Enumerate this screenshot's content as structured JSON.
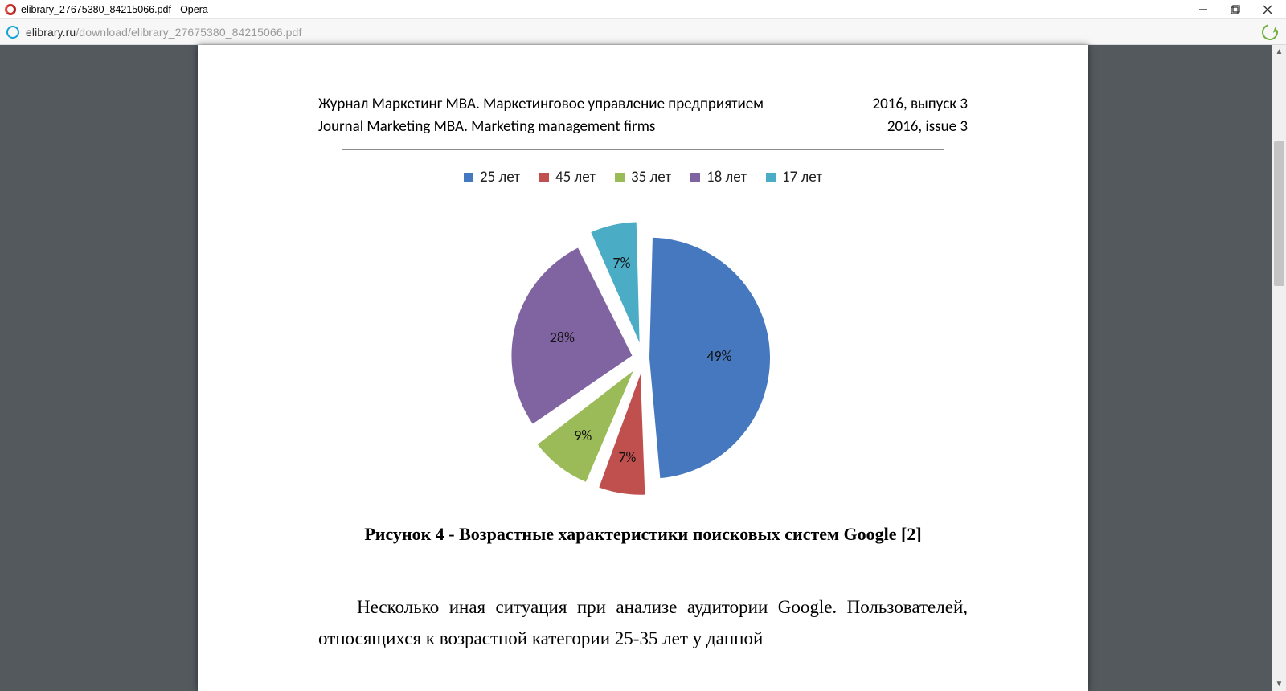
{
  "window": {
    "title": "elibrary_27675380_84215066.pdf - Opera",
    "controls": {
      "minimize": "—",
      "maximize": "❐",
      "close": "✕"
    }
  },
  "addressbar": {
    "host": "elibrary.ru",
    "path": "/download/elibrary_27675380_84215066.pdf"
  },
  "document": {
    "header": {
      "ru_title": "Журнал Маркетинг MBA. Маркетинговое управление предприятием",
      "ru_issue": "2016,  выпуск 3",
      "en_title": "Journal Marketing MBA.  Marketing management firms",
      "en_issue": "2016,  issue    3"
    },
    "chart": {
      "type": "pie",
      "exploded": true,
      "gap_deg": 3,
      "radius": 150,
      "start_angle_deg": -90,
      "background_color": "#ffffff",
      "border_color": "#8b8b8b",
      "legend_fontsize": 19,
      "label_fontsize": 18,
      "label_color": "#111111",
      "slices": [
        {
          "label": "25 лет",
          "value": 49,
          "pct_label": "49%",
          "color": "#4678c0",
          "explode": 8,
          "label_r": 0.58
        },
        {
          "label": "45 лет",
          "value": 7,
          "pct_label": "7%",
          "color": "#c0504d",
          "explode": 20,
          "label_r": 0.7
        },
        {
          "label": "35 лет",
          "value": 9,
          "pct_label": "9%",
          "color": "#9bbb59",
          "explode": 20,
          "label_r": 0.68
        },
        {
          "label": "18 лет",
          "value": 28,
          "pct_label": "28%",
          "color": "#8064a2",
          "explode": 14,
          "label_r": 0.6
        },
        {
          "label": "17 лет",
          "value": 7,
          "pct_label": "7%",
          "color": "#4bacc6",
          "explode": 20,
          "label_r": 0.68
        }
      ]
    },
    "caption": "Рисунок 4 -  Возрастные характеристики поисковых систем Google [2]",
    "paragraph": "Несколько иная ситуация при анализе аудитории Google. Пользователей, относящихся к возрастной категории 25-35 лет у данной"
  },
  "colors": {
    "viewer_bg": "#54595e",
    "page_bg": "#ffffff",
    "scrollbar_track": "#f0f0f0",
    "scrollbar_thumb": "#c4c4c4"
  }
}
